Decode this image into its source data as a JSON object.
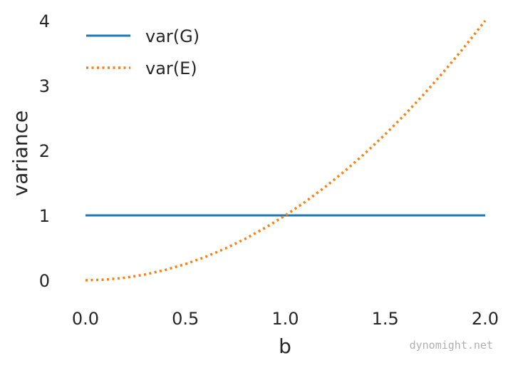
{
  "chart_data": {
    "type": "line",
    "xlabel": "b",
    "ylabel": "variance",
    "xlim": [
      0.0,
      2.0
    ],
    "ylim": [
      0,
      4
    ],
    "x_ticks": [
      "0.0",
      "0.5",
      "1.0",
      "1.5",
      "2.0"
    ],
    "y_ticks": [
      "0",
      "1",
      "2",
      "3",
      "4"
    ],
    "grid": false,
    "legend_position": "top-left",
    "x": [
      0.0,
      0.1,
      0.2,
      0.3,
      0.4,
      0.5,
      0.6,
      0.7,
      0.8,
      0.9,
      1.0,
      1.1,
      1.2,
      1.3,
      1.4,
      1.5,
      1.6,
      1.7,
      1.8,
      1.9,
      2.0
    ],
    "series": [
      {
        "name": "var(G)",
        "style": "solid",
        "color": "#1f77b4",
        "values": [
          1,
          1,
          1,
          1,
          1,
          1,
          1,
          1,
          1,
          1,
          1,
          1,
          1,
          1,
          1,
          1,
          1,
          1,
          1,
          1,
          1
        ]
      },
      {
        "name": "var(E)",
        "style": "dotted",
        "color": "#ff7f0e",
        "values": [
          0.0,
          0.01,
          0.04,
          0.09,
          0.16,
          0.25,
          0.36,
          0.49,
          0.64,
          0.81,
          1.0,
          1.21,
          1.44,
          1.69,
          1.96,
          2.25,
          2.56,
          2.89,
          3.24,
          3.61,
          4.0
        ]
      }
    ]
  },
  "watermark": "dynomight.net"
}
